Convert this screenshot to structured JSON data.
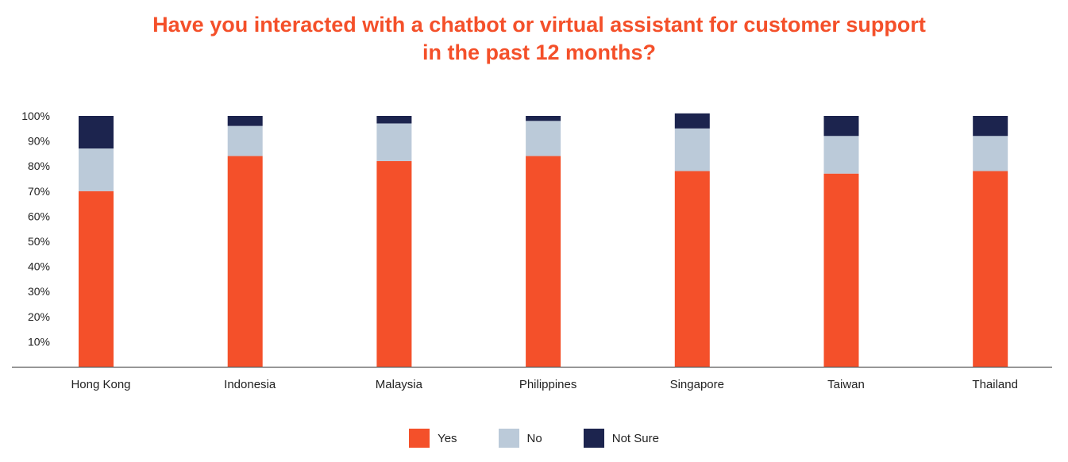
{
  "chart_data": {
    "type": "bar",
    "stacked": true,
    "title": "Have you interacted with a chatbot or virtual assistant for customer support in the past 12 months?",
    "title_lines": [
      "Have you interacted with a chatbot or virtual assistant for customer support",
      "in the past 12 months?"
    ],
    "xlabel": "",
    "ylabel": "",
    "ylim": [
      0,
      100
    ],
    "yticks": [
      "10%",
      "20%",
      "30%",
      "40%",
      "50%",
      "60%",
      "70%",
      "80%",
      "90%",
      "100%"
    ],
    "categories": [
      "Hong Kong",
      "Indonesia",
      "Malaysia",
      "Philippines",
      "Singapore",
      "Taiwan",
      "Thailand"
    ],
    "series": [
      {
        "name": "Yes",
        "color": "#f4502a",
        "values": [
          70,
          84,
          82,
          84,
          78,
          77,
          78
        ]
      },
      {
        "name": "No",
        "color": "#bbcad9",
        "values": [
          17,
          12,
          15,
          14,
          17,
          15,
          14
        ]
      },
      {
        "name": "Not Sure",
        "color": "#1c244e",
        "values": [
          13,
          4,
          3,
          2,
          6,
          8,
          8
        ]
      }
    ],
    "legend_position": "bottom",
    "grid": false
  }
}
